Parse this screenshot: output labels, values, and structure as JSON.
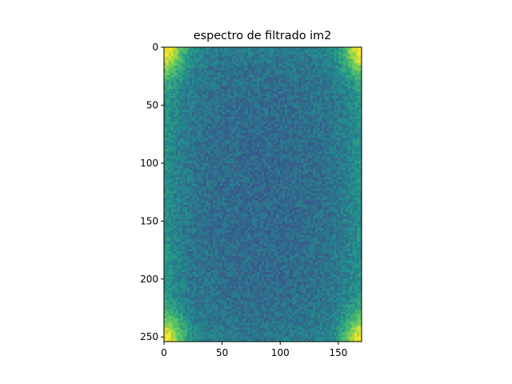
{
  "chart_data": {
    "type": "heatmap",
    "title": "espectro de filtrado im2",
    "xlabel": "",
    "ylabel": "",
    "colormap": "viridis",
    "image_shape": [
      254,
      170
    ],
    "xlim": [
      0,
      170
    ],
    "ylim": [
      254,
      0
    ],
    "x_ticks": [
      0,
      50,
      100,
      150
    ],
    "y_ticks": [
      0,
      50,
      100,
      150,
      200,
      250
    ],
    "grid": false,
    "description_values": {
      "corner_intensity": "high",
      "center_intensity": "low-medium"
    }
  },
  "colors": {
    "low": "#2a788e",
    "mid": "#22a884",
    "high": "#fde725",
    "axis": "#000000"
  }
}
